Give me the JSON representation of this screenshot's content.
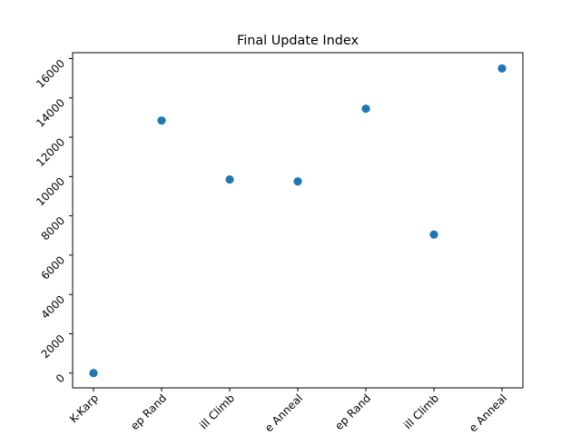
{
  "chart_data": {
    "type": "scatter",
    "title": "Final Update Index",
    "xlabel": "",
    "ylabel": "",
    "categories": [
      "K-Karp",
      "Step Rand",
      "Hill Climb",
      "Sim Anneal",
      "Step Rand",
      "Hill Climb",
      "Sim Anneal"
    ],
    "category_labels_visible": [
      "K-Karp",
      "ep Rand",
      "ill Climb",
      "e Anneal",
      "ep Rand",
      "ill Climb",
      "e Anneal"
    ],
    "values": [
      0,
      12850,
      9850,
      9750,
      13450,
      7050,
      15500
    ],
    "ylim": [
      -750,
      16300
    ],
    "yticks": [
      0,
      2000,
      4000,
      6000,
      8000,
      10000,
      12000,
      14000,
      16000
    ],
    "grid": false,
    "marker_color": "#1f77b4"
  }
}
